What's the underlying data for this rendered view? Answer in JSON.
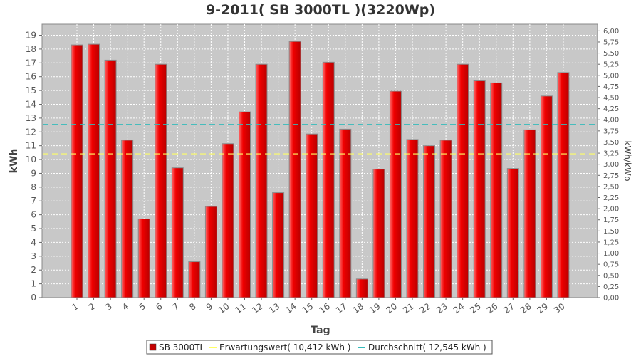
{
  "chart_data": {
    "type": "bar",
    "title": "9-2011( SB 3000TL )(3220Wp)",
    "xlabel": "Tag",
    "ylabel": "kWh",
    "ylabel_right": "kWh/kWp",
    "ylim": [
      0,
      19.8
    ],
    "ylim_right": [
      0,
      6.15
    ],
    "yticks": [
      0,
      1,
      2,
      3,
      4,
      5,
      6,
      7,
      8,
      9,
      10,
      11,
      12,
      13,
      14,
      15,
      16,
      17,
      18,
      19
    ],
    "yticks_right": [
      "0,00",
      "0,25",
      "0,50",
      "0,75",
      "1,00",
      "1,25",
      "1,50",
      "1,75",
      "2,00",
      "2,25",
      "2,50",
      "2,75",
      "3,00",
      "3,25",
      "3,50",
      "3,75",
      "4,00",
      "4,25",
      "4,50",
      "4,75",
      "5,00",
      "5,25",
      "5,50",
      "5,75",
      "6,00"
    ],
    "categories": [
      "1",
      "2",
      "3",
      "4",
      "5",
      "6",
      "7",
      "8",
      "9",
      "10",
      "11",
      "12",
      "13",
      "14",
      "15",
      "16",
      "17",
      "18",
      "19",
      "20",
      "21",
      "22",
      "23",
      "24",
      "25",
      "26",
      "27",
      "28",
      "29",
      "30"
    ],
    "series": [
      {
        "name": "SB 3000TL",
        "color": "#e60000",
        "values": [
          18.3,
          18.35,
          17.2,
          11.4,
          5.7,
          16.9,
          9.4,
          2.6,
          6.6,
          11.15,
          13.45,
          16.9,
          7.6,
          18.55,
          11.85,
          17.05,
          12.2,
          1.35,
          9.3,
          14.95,
          11.45,
          11.0,
          11.4,
          16.9,
          15.7,
          15.55,
          9.35,
          12.15,
          14.6,
          16.3
        ]
      }
    ],
    "reference_lines": [
      {
        "name": "Erwartungswert",
        "value": 10.412,
        "color": "#ffff66"
      },
      {
        "name": "Durchschnitt",
        "value": 12.545,
        "color": "#33bbbb"
      }
    ],
    "legend": {
      "position": "bottom-center",
      "items": [
        {
          "label": "SB 3000TL",
          "color": "#c40000"
        },
        {
          "label": "Erwartungswert( 10,412 kWh )",
          "color": "#ffff66"
        },
        {
          "label": "Durchschnitt( 12,545 kWh )",
          "color": "#33bbbb"
        }
      ]
    },
    "grid": true
  }
}
